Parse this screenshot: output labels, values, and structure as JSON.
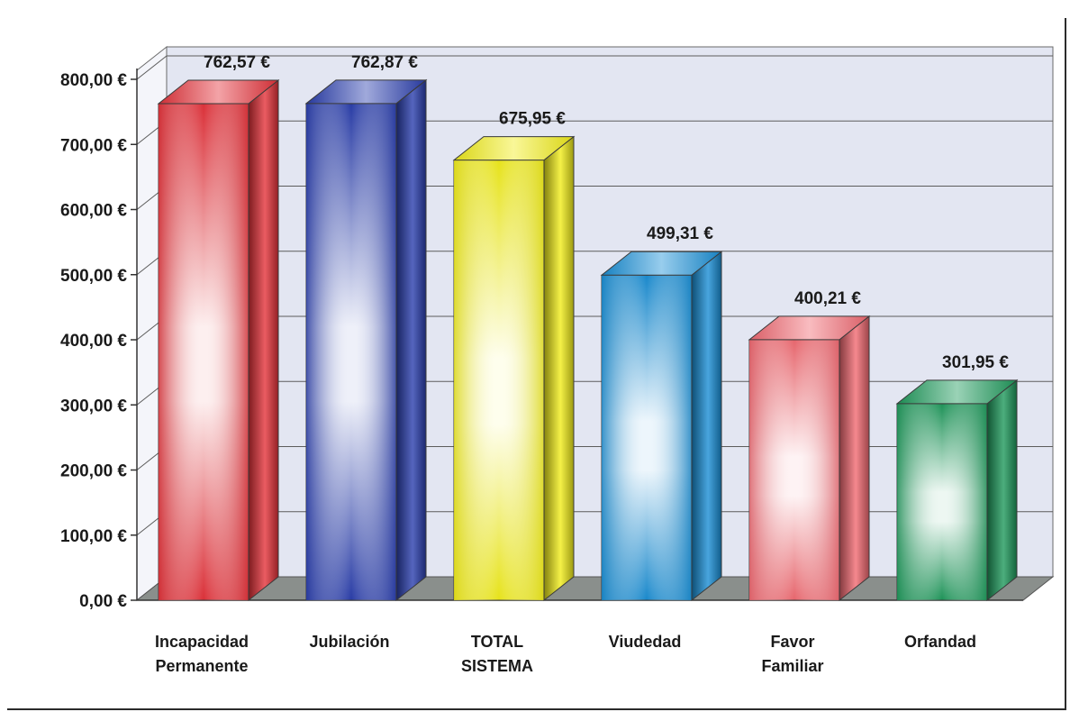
{
  "chart_data": {
    "type": "bar",
    "categories": [
      [
        "Incapacidad",
        "Permanente"
      ],
      [
        "Jubilación"
      ],
      [
        "TOTAL",
        "SISTEMA"
      ],
      [
        "Viudedad"
      ],
      [
        "Favor",
        "Familiar"
      ],
      [
        "Orfandad"
      ]
    ],
    "values": [
      762.57,
      762.87,
      675.95,
      499.31,
      400.21,
      301.95
    ],
    "value_labels": [
      "762,57 €",
      "762,87 €",
      "675,95 €",
      "499,31 €",
      "400,21 €",
      "301,95 €"
    ],
    "colors": [
      "#e5333b",
      "#2b3fae",
      "#f2ee1a",
      "#1a8fd6",
      "#f26a72",
      "#1f9a5c"
    ],
    "ylim": [
      0,
      800
    ],
    "y_ticks": [
      0,
      100,
      200,
      300,
      400,
      500,
      600,
      700,
      800
    ],
    "y_tick_labels": [
      "0,00 €",
      "100,00 €",
      "200,00 €",
      "300,00 €",
      "400,00 €",
      "500,00 €",
      "600,00 €",
      "700,00 €",
      "800,00 €"
    ],
    "title": "",
    "xlabel": "",
    "ylabel": "",
    "grid": true,
    "style": "3d",
    "legend": "none"
  }
}
